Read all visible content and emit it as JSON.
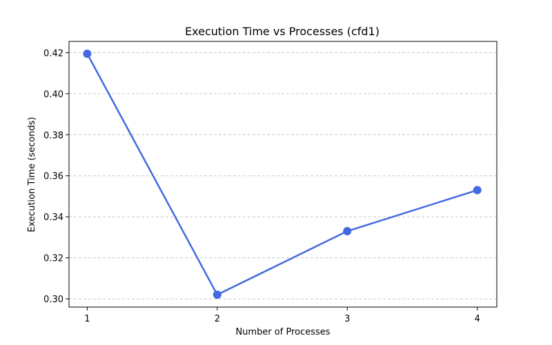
{
  "chart_data": {
    "type": "line",
    "title": "Execution Time vs Processes (cfd1)",
    "xlabel": "Number of Processes",
    "ylabel": "Execution Time (seconds)",
    "x": [
      1,
      2,
      3,
      4
    ],
    "xticks": [
      "1",
      "2",
      "3",
      "4"
    ],
    "yticks": [
      "0.30",
      "0.32",
      "0.34",
      "0.36",
      "0.38",
      "0.40",
      "0.42"
    ],
    "ytick_values": [
      0.3,
      0.32,
      0.34,
      0.36,
      0.38,
      0.4,
      0.42
    ],
    "xlim": [
      0.86,
      4.15
    ],
    "ylim": [
      0.296,
      0.4255
    ],
    "grid": "y-dashed",
    "series": [
      {
        "values": [
          0.4195,
          0.302,
          0.333,
          0.353
        ],
        "color": "#4169E1",
        "marker": "circle"
      }
    ],
    "grid_color": "#c8c8c8"
  }
}
